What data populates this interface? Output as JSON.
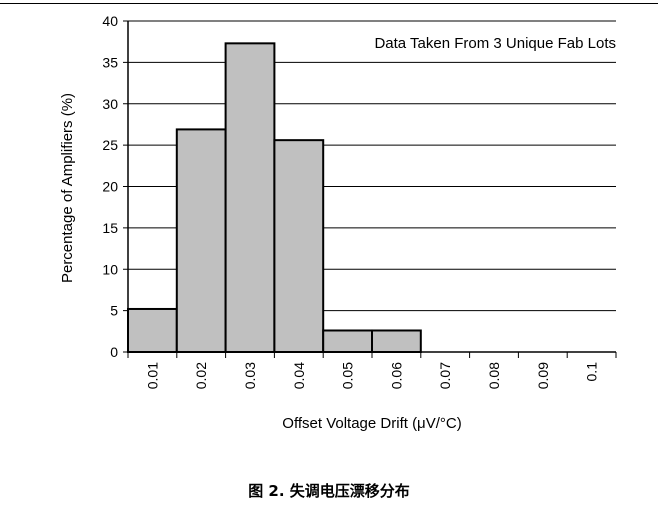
{
  "caption": "图 2. 失调电压漂移分布",
  "chart_data": {
    "type": "bar",
    "title": "",
    "annotation": "Data Taken From 3 Unique Fab Lots",
    "xlabel": "Offset Voltage Drift (μV/°C)",
    "ylabel": "Percentage of Amplifiers (%)",
    "categories": [
      "0.01",
      "0.02",
      "0.03",
      "0.04",
      "0.05",
      "0.06",
      "0.07",
      "0.08",
      "0.09",
      "0.1"
    ],
    "values": [
      5.2,
      26.9,
      37.3,
      25.6,
      2.6,
      2.6,
      0,
      0,
      0,
      0
    ],
    "ylim": [
      0,
      40
    ],
    "yticks": [
      "0",
      "5",
      "10",
      "15",
      "20",
      "25",
      "30",
      "35",
      "40"
    ],
    "grid": true,
    "bar_color": "#c0c0c0"
  }
}
